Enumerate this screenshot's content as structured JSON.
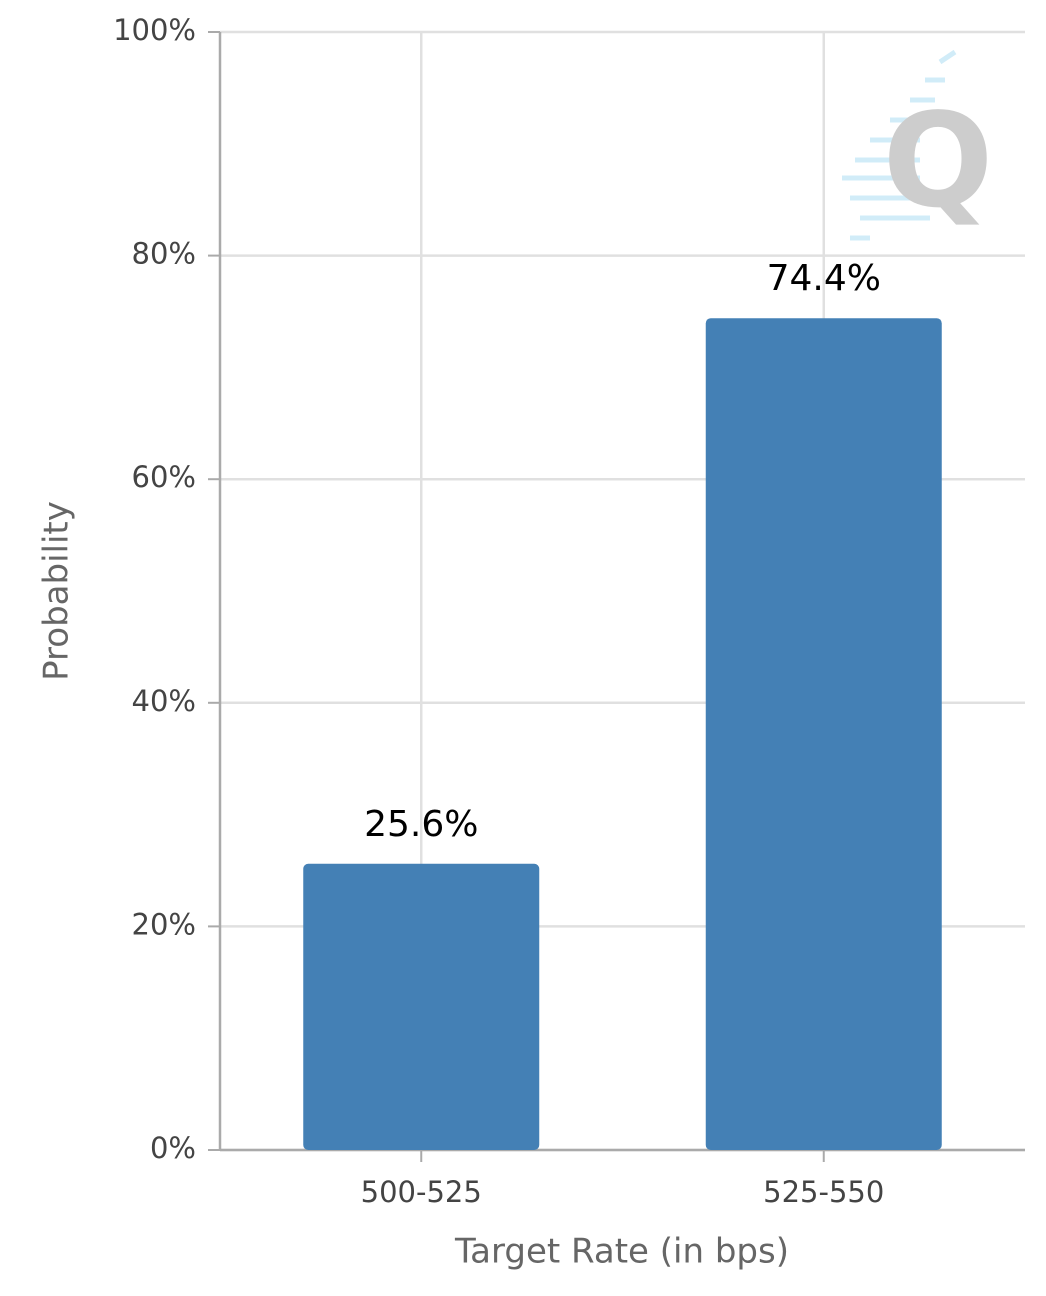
{
  "chart_data": {
    "type": "bar",
    "x_label": "Target Rate (in bps)",
    "y_label": "Probability",
    "categories": [
      "500-525",
      "525-550"
    ],
    "values": [
      25.6,
      74.4
    ],
    "value_labels": [
      "25.6%",
      "74.4%"
    ],
    "color": "#4480b5",
    "ylim": [
      0,
      100
    ],
    "yticks": [
      {
        "value": 0,
        "label": "0%"
      },
      {
        "value": 20,
        "label": "20%"
      },
      {
        "value": 40,
        "label": "40%"
      },
      {
        "value": 60,
        "label": "60%"
      },
      {
        "value": 80,
        "label": "80%"
      },
      {
        "value": 100,
        "label": "100%"
      }
    ],
    "grid": true
  }
}
